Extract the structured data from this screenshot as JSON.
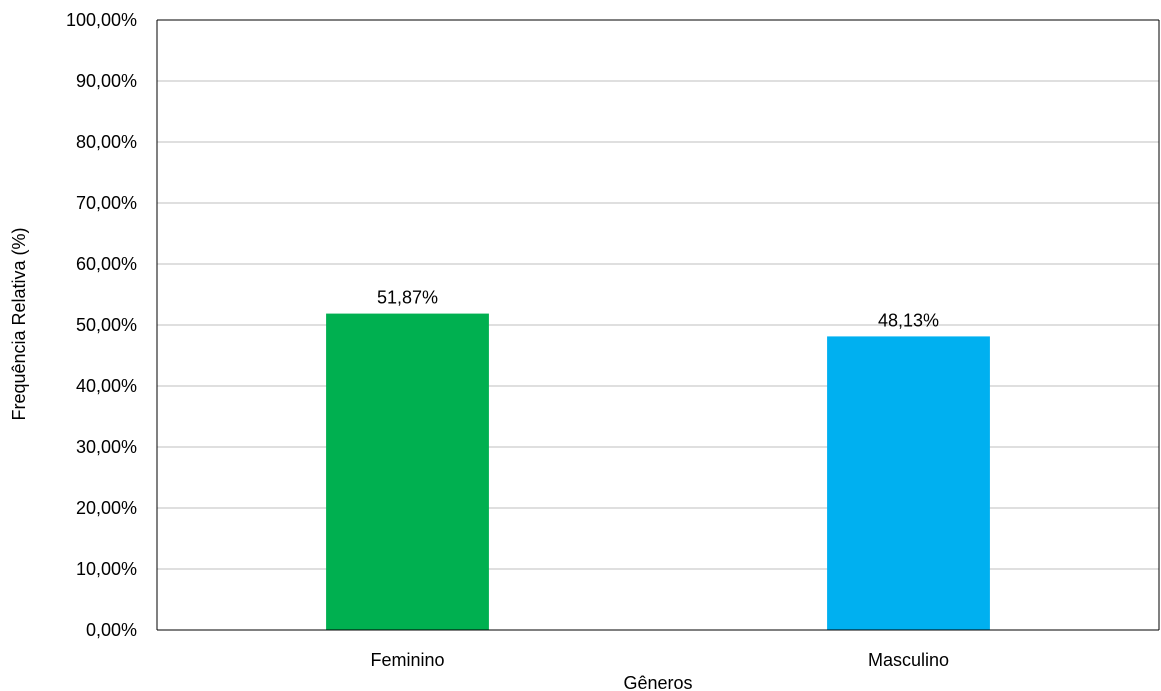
{
  "chart_data": {
    "type": "bar",
    "title": "",
    "xlabel": "Gêneros",
    "ylabel": "Frequência Relativa (%)",
    "ylim": [
      0,
      100
    ],
    "yticks": [
      "0,00%",
      "10,00%",
      "20,00%",
      "30,00%",
      "40,00%",
      "50,00%",
      "60,00%",
      "70,00%",
      "80,00%",
      "90,00%",
      "100,00%"
    ],
    "categories": [
      "Feminino",
      "Masculino"
    ],
    "values": [
      51.87,
      48.13
    ],
    "data_labels": [
      "51,87%",
      "48,13%"
    ],
    "colors": [
      "#00b050",
      "#00b0f0"
    ],
    "grid": true,
    "legend": "none"
  }
}
